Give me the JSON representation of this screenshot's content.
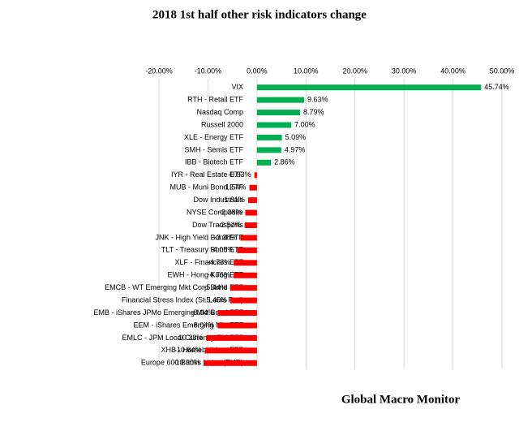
{
  "chart_data": {
    "type": "hbar",
    "title": "2018 1st half other risk indicators change",
    "footer": "Global Macro Monitor",
    "categories": [
      "VIX",
      "RTH - Retail ETF",
      "Nasdaq Comp",
      "Russell 2000",
      "XLE - Energy ETF",
      "SMH - Semis ETF",
      "IBB - Biotech ETF",
      "IYR - Real Estate ETF",
      "MUB - Muni Bond ETF",
      "Dow Industrials",
      "NYSE Composite",
      "Dow Transports",
      "JNK - High Yield Bond ETF",
      "TLT - Treasury Bond ETF",
      "XLF - Financials ETF",
      "EWH - Hong Kong ETF",
      "EMCB - WT Emerging Mkt Corp Bond ETF",
      "Financial Stress Index (St. Louis Fed)",
      "EMB - iShares JPMo Emerging Mkt Bond ETF",
      "EEM - iShares Emerging Mkt ETF",
      "EMLC - JPM Local Currency EM ETF",
      "XHB - Homebuilders ETF",
      "Europe 600 Banks Index (EUR)"
    ],
    "values": [
      45.74,
      9.63,
      8.79,
      7.0,
      5.09,
      4.97,
      2.86,
      -0.53,
      -1.54,
      -1.81,
      -2.38,
      -2.52,
      -3.38,
      -4.05,
      -4.73,
      -4.76,
      -5.44,
      -5.45,
      -8.04,
      -8.04,
      -10.33,
      -10.64,
      -10.9
    ],
    "value_labels": [
      "45.74%",
      "9.63%",
      "8.79%",
      "7.00%",
      "5.09%",
      "4.97%",
      "2.86%",
      "-0.53%",
      "-1.54%",
      "-1.81%",
      "-2.38%",
      "-2.52%",
      "-3.38%",
      "-4.05%",
      "-4.73%",
      "-4.76%",
      "-5.44%",
      "-5.45%",
      "-8.04%",
      "-8.04%",
      "-10.33%",
      "-10.64%",
      "-10.90%"
    ],
    "positive_color": "#00b050",
    "negative_color": "#ff0000",
    "xlim": [
      -20,
      50
    ],
    "xticks": [
      {
        "value": -20,
        "label": "-20.00%"
      },
      {
        "value": -10,
        "label": "-10.00%"
      },
      {
        "value": 0,
        "label": "0.00%"
      },
      {
        "value": 10,
        "label": "10.00%"
      },
      {
        "value": 20,
        "label": "20.00%"
      },
      {
        "value": 30,
        "label": "30.00%"
      },
      {
        "value": 40,
        "label": "40.00%"
      },
      {
        "value": 50,
        "label": "50.00%"
      }
    ],
    "grid": true
  }
}
